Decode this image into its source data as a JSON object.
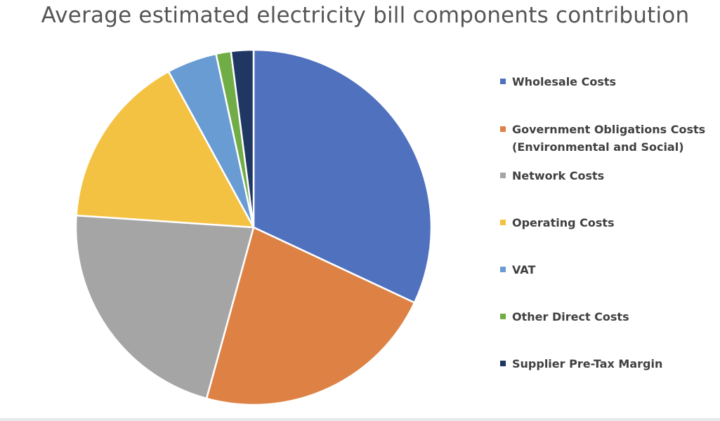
{
  "chart_data": {
    "type": "pie",
    "title": "Average estimated electricity bill components contribution",
    "legend_position": "right",
    "slices": [
      {
        "label": "Wholesale Costs",
        "value": 33.0,
        "color": "#4f71be"
      },
      {
        "label": "Government Obligations Costs (Environmental and Social)",
        "label_lines": [
          "Government Obligations Costs",
          "(Environmental and Social)"
        ],
        "value": 23.0,
        "color": "#dd8244"
      },
      {
        "label": "Network Costs",
        "value": 22.5,
        "color": "#a5a5a5"
      },
      {
        "label": "Operating Costs",
        "value": 16.5,
        "color": "#f4c243"
      },
      {
        "label": "VAT",
        "value": 4.7,
        "color": "#6a9cd4"
      },
      {
        "label": "Other Direct Costs",
        "value": 1.4,
        "color": "#71ad47"
      },
      {
        "label": "Supplier Pre-Tax Margin",
        "value": 2.1,
        "color": "#203764"
      }
    ]
  }
}
